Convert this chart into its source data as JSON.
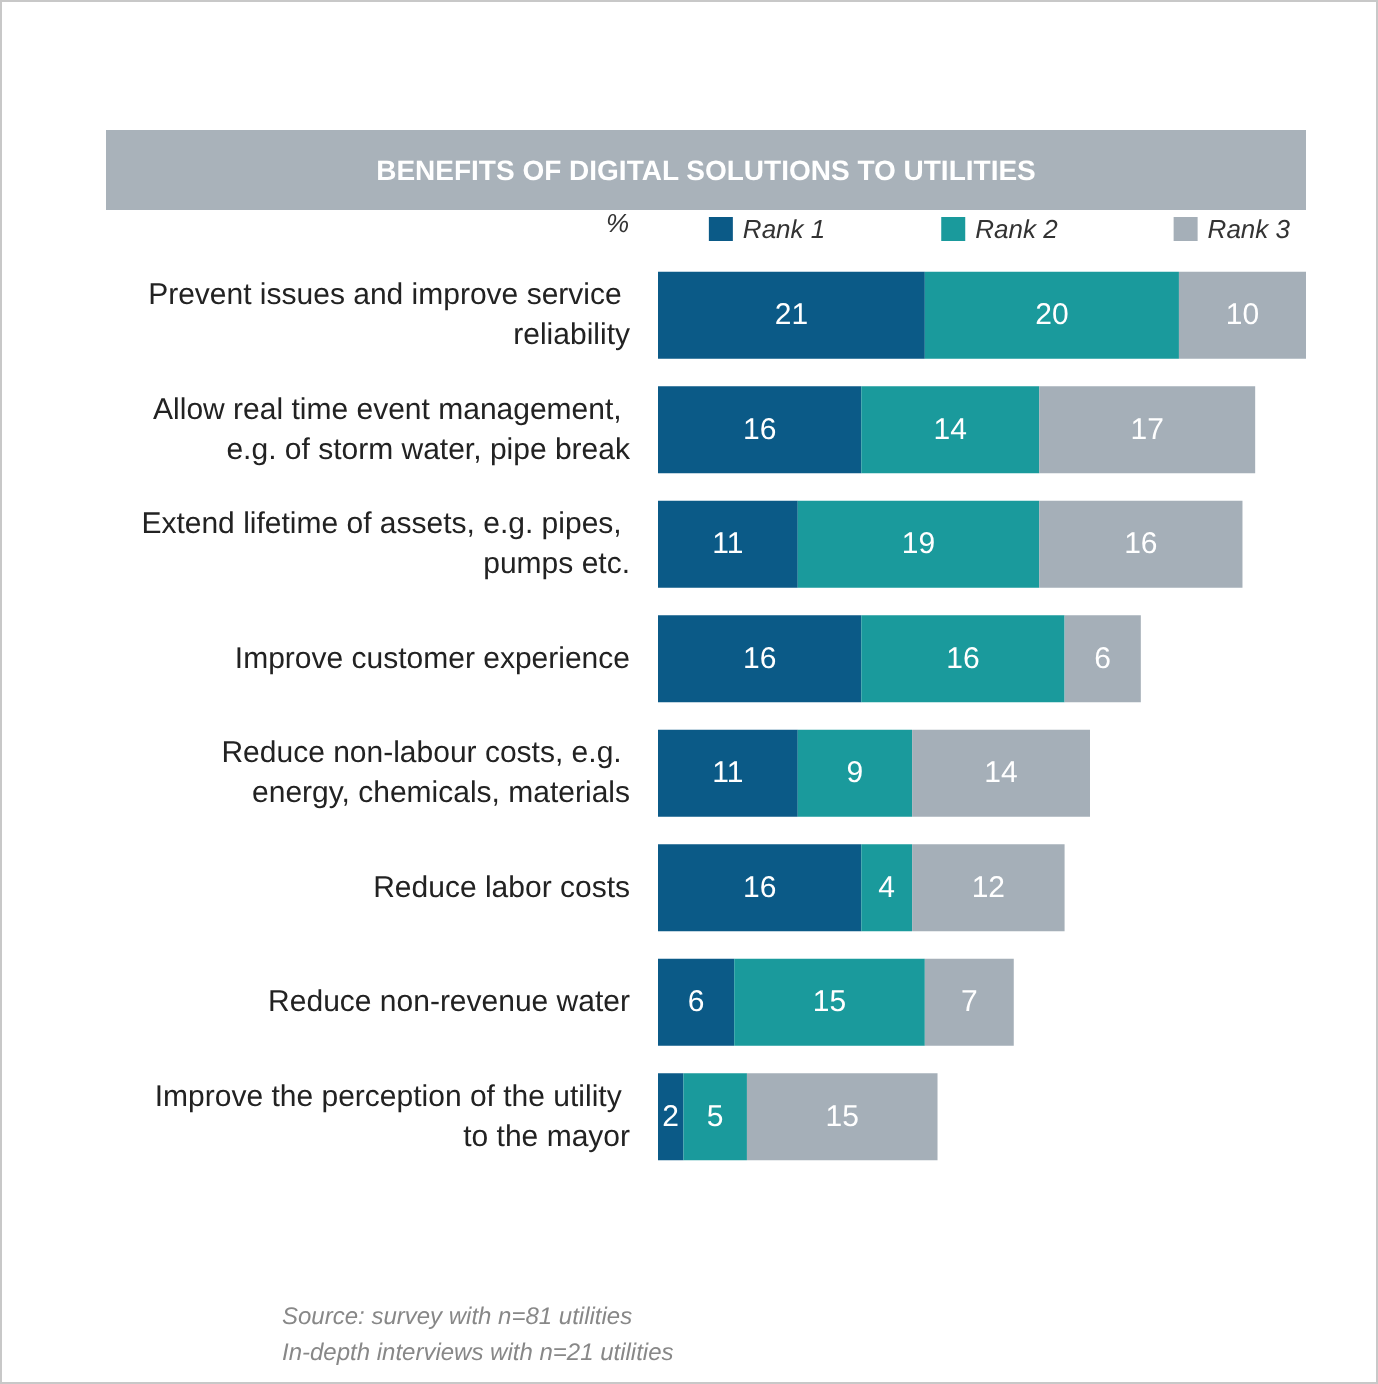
{
  "chart_data": {
    "type": "bar",
    "orientation": "horizontal",
    "stacked": true,
    "title": "BENEFITS OF DIGITAL SOLUTIONS TO UTILITIES",
    "legend_title": "%",
    "legend": "top right",
    "data_labels": true,
    "tick_labels": "y",
    "categories": [
      "Prevent issues and improve service reliability",
      "Allow real time event management, e.g. of storm water, pipe break",
      "Extend lifetime of assets, e.g. pipes, pumps etc.",
      "Improve customer experience",
      "Reduce non-labour costs, e.g. energy, chemicals, materials",
      "Reduce labor costs",
      "Reduce non-revenue water",
      "Improve the perception of the utility to the mayor"
    ],
    "series": [
      {
        "name": "Rank 1",
        "color": "#0b5a87",
        "values": [
          21,
          16,
          11,
          16,
          11,
          16,
          6,
          2
        ]
      },
      {
        "name": "Rank 2",
        "color": "#1a9a9c",
        "values": [
          20,
          14,
          19,
          16,
          9,
          4,
          15,
          5
        ]
      },
      {
        "name": "Rank 3",
        "color": "#a5afb8",
        "values": [
          10,
          17,
          16,
          6,
          14,
          12,
          7,
          15
        ]
      }
    ],
    "annotations": [
      "Source: survey with n=81 utilities",
      "In-depth interviews with n=21 utilities"
    ]
  }
}
